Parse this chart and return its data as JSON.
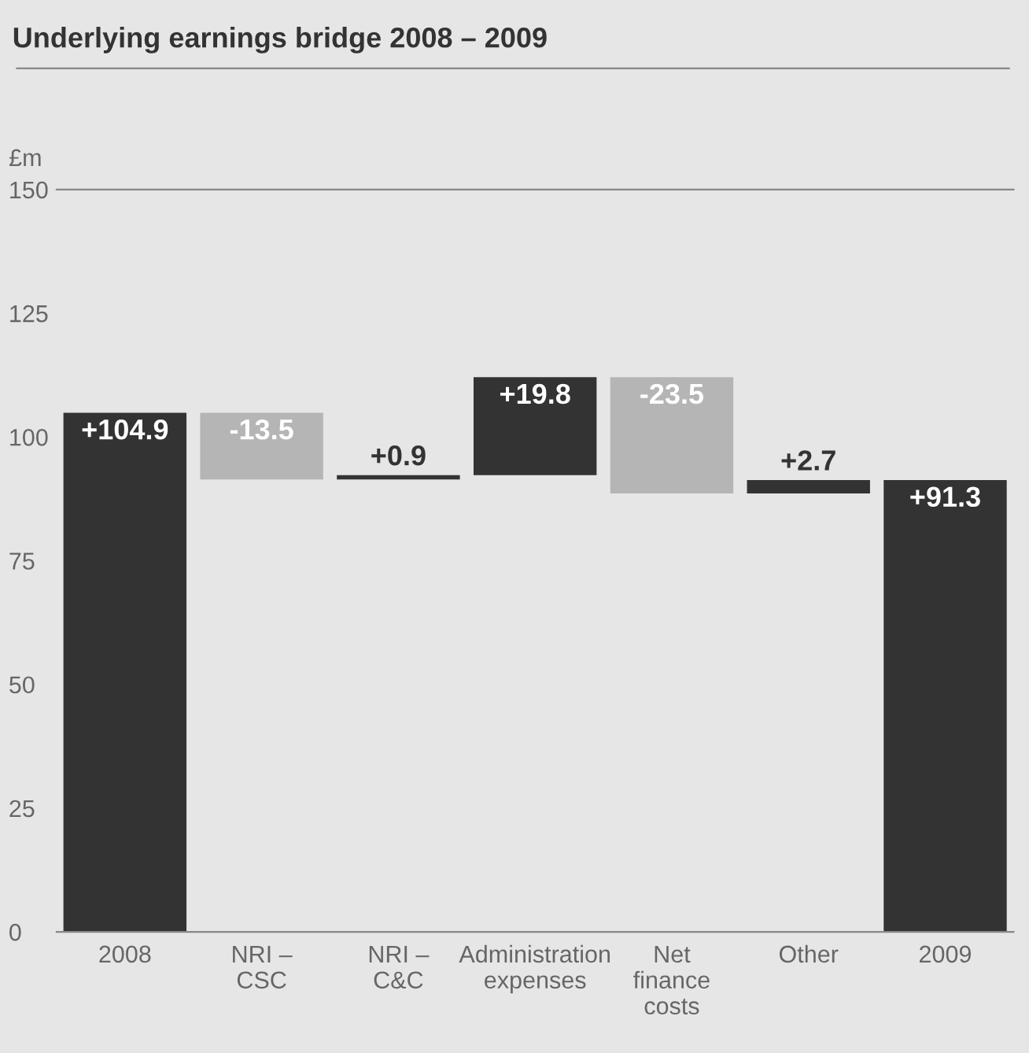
{
  "chart_data": {
    "type": "bar",
    "title": "Underlying earnings bridge 2008 – 2009",
    "ylabel": "£m",
    "categories": [
      "2008",
      "NRI –\nCSC",
      "NRI –\nC&C",
      "Administration\nexpenses",
      "Net\nfinance\ncosts",
      "Other",
      "2009"
    ],
    "base": [
      0,
      104.9,
      91.4,
      92.3,
      112.1,
      88.6,
      0
    ],
    "values": [
      104.9,
      -13.5,
      0.9,
      19.8,
      -23.5,
      2.7,
      91.3
    ],
    "value_labels": [
      "+104.9",
      "-13.5",
      "+0.9",
      "+19.8",
      "-23.5",
      "+2.7",
      "+91.3"
    ],
    "colors": [
      "#333333",
      "#b5b5b5",
      "#333333",
      "#333333",
      "#b5b5b5",
      "#333333",
      "#333333"
    ],
    "ylim": [
      0,
      150
    ],
    "yticks": [
      0,
      25,
      50,
      75,
      100,
      125,
      150
    ],
    "grid": false,
    "legend": false
  }
}
